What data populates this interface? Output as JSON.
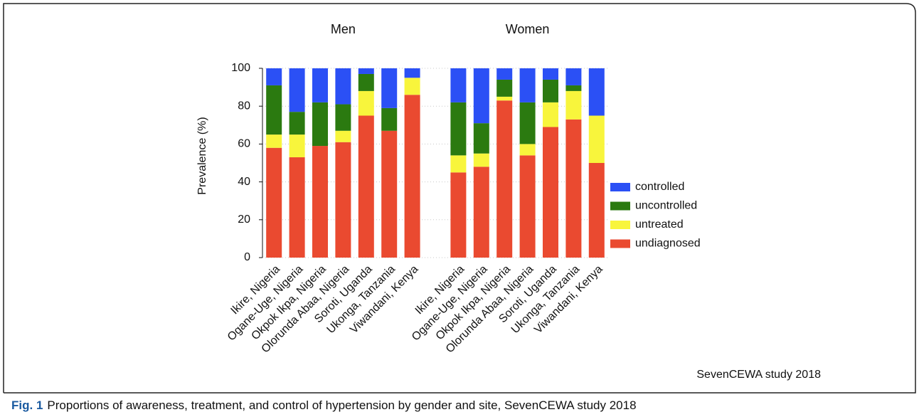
{
  "chart_data": {
    "type": "bar",
    "stacked": true,
    "ylabel": "Prevalence (%)",
    "ylim": [
      0,
      100
    ],
    "yticks": [
      0,
      20,
      40,
      60,
      80,
      100
    ],
    "grid": true,
    "legend": "right",
    "series": [
      {
        "name": "undiagnosed",
        "color": "#ea4a30"
      },
      {
        "name": "untreated",
        "color": "#f8f53c"
      },
      {
        "name": "uncontrolled",
        "color": "#2b7a10"
      },
      {
        "name": "controlled",
        "color": "#2b50f5"
      }
    ],
    "panels": [
      {
        "title": "Men",
        "categories": [
          "Ikire, Nigeria",
          "Ogane-Uge, Nigeria",
          "Okpok Ikpa, Nigeria",
          "Olorunda Abaa, Nigeria",
          "Soroti, Uganda",
          "Ukonga, Tanzania",
          "Viwandani, Kenya"
        ],
        "series_values": [
          [
            58,
            53,
            59,
            61,
            75,
            67,
            86
          ],
          [
            7,
            12,
            0,
            6,
            13,
            0,
            9
          ],
          [
            26,
            12,
            23,
            14,
            9,
            12,
            0
          ],
          [
            9,
            23,
            18,
            19,
            3,
            21,
            5
          ]
        ]
      },
      {
        "title": "Women",
        "categories": [
          "Ikire, Nigeria",
          "Ogane-Uge, Nigeria",
          "Okpok Ikpa, Nigeria",
          "Olorunda Abaa, Nigeria",
          "Soroti, Uganda",
          "Ukonga, Tanzania",
          "Viwandani, Kenya"
        ],
        "series_values": [
          [
            45,
            48,
            83,
            54,
            69,
            73,
            50
          ],
          [
            9,
            7,
            2,
            6,
            13,
            15,
            25
          ],
          [
            28,
            16,
            9,
            22,
            12,
            3,
            0
          ],
          [
            18,
            29,
            6,
            18,
            6,
            9,
            25
          ]
        ]
      }
    ]
  },
  "source": "SevenCEWA study 2018",
  "caption": {
    "label": "Fig. 1",
    "text": "Proportions of awareness, treatment, and control of hypertension by gender and site, SevenCEWA study 2018"
  }
}
